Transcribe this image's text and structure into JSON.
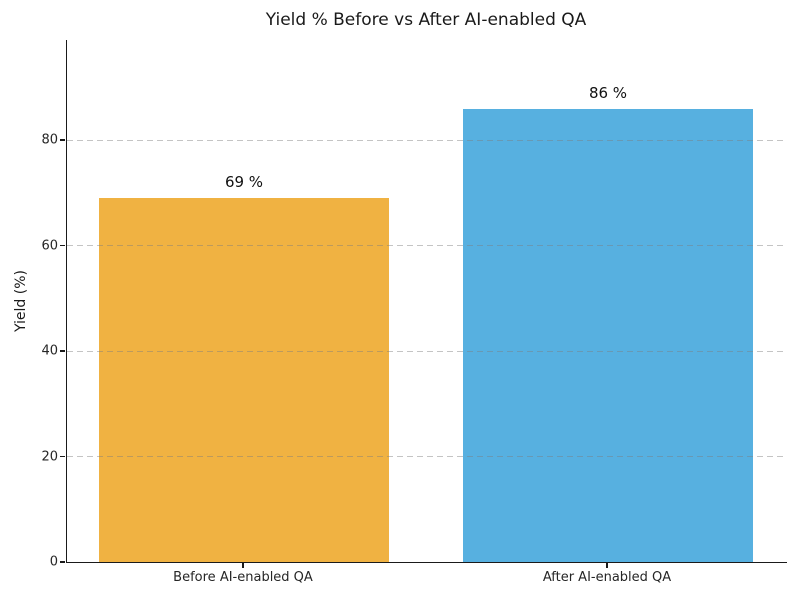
{
  "chart_data": {
    "type": "bar",
    "title": "Yield % Before vs After AI-enabled QA",
    "xlabel": "",
    "ylabel": "Yield (%)",
    "categories": [
      "Before AI-enabled QA",
      "After AI-enabled QA"
    ],
    "values": [
      69,
      86
    ],
    "bar_value_labels": [
      "69 %",
      "86 %"
    ],
    "bar_colors": [
      "#f0b242",
      "#57b0e0"
    ],
    "ylim": [
      0,
      99
    ],
    "yticks": [
      0,
      20,
      40,
      60,
      80
    ],
    "grid": "horizontal dashed",
    "legend": "none"
  }
}
